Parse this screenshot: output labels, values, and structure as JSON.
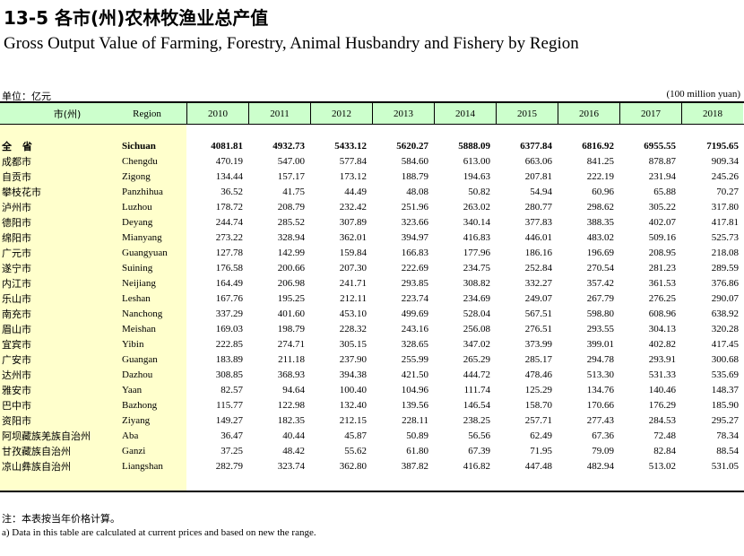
{
  "title_cn": "13-5  各市(州)农林牧渔业总产值",
  "title_en": "Gross Output Value of Farming, Forestry, Animal Husbandry and Fishery by Region",
  "unit_cn": "单位：亿元",
  "unit_en": "(100 million yuan)",
  "headers": {
    "region_cn": "市(州)",
    "region_en": "Region",
    "years": [
      "2010",
      "2011",
      "2012",
      "2013",
      "2014",
      "2015",
      "2016",
      "2017",
      "2018"
    ]
  },
  "rows": [
    {
      "cn": "全 省",
      "en": "Sichuan",
      "values": [
        "4081.81",
        "4932.73",
        "5433.12",
        "5620.27",
        "5888.09",
        "6377.84",
        "6816.92",
        "6955.55",
        "7195.65"
      ]
    },
    {
      "cn": "成都市",
      "en": "Chengdu",
      "values": [
        "470.19",
        "547.00",
        "577.84",
        "584.60",
        "613.00",
        "663.06",
        "841.25",
        "878.87",
        "909.34"
      ]
    },
    {
      "cn": "自贡市",
      "en": "Zigong",
      "values": [
        "134.44",
        "157.17",
        "173.12",
        "188.79",
        "194.63",
        "207.81",
        "222.19",
        "231.94",
        "245.26"
      ]
    },
    {
      "cn": "攀枝花市",
      "en": "Panzhihua",
      "values": [
        "36.52",
        "41.75",
        "44.49",
        "48.08",
        "50.82",
        "54.94",
        "60.96",
        "65.88",
        "70.27"
      ]
    },
    {
      "cn": "泸州市",
      "en": "Luzhou",
      "values": [
        "178.72",
        "208.79",
        "232.42",
        "251.96",
        "263.02",
        "280.77",
        "298.62",
        "305.22",
        "317.80"
      ]
    },
    {
      "cn": "德阳市",
      "en": "Deyang",
      "values": [
        "244.74",
        "285.52",
        "307.89",
        "323.66",
        "340.14",
        "377.83",
        "388.35",
        "402.07",
        "417.81"
      ]
    },
    {
      "cn": "绵阳市",
      "en": "Mianyang",
      "values": [
        "273.22",
        "328.94",
        "362.01",
        "394.97",
        "416.83",
        "446.01",
        "483.02",
        "509.16",
        "525.73"
      ]
    },
    {
      "cn": "广元市",
      "en": "Guangyuan",
      "values": [
        "127.78",
        "142.99",
        "159.84",
        "166.83",
        "177.96",
        "186.16",
        "196.69",
        "208.95",
        "218.08"
      ]
    },
    {
      "cn": "遂宁市",
      "en": "Suining",
      "values": [
        "176.58",
        "200.66",
        "207.30",
        "222.69",
        "234.75",
        "252.84",
        "270.54",
        "281.23",
        "289.59"
      ]
    },
    {
      "cn": "内江市",
      "en": "Neijiang",
      "values": [
        "164.49",
        "206.98",
        "241.71",
        "293.85",
        "308.82",
        "332.27",
        "357.42",
        "361.53",
        "376.86"
      ]
    },
    {
      "cn": "乐山市",
      "en": "Leshan",
      "values": [
        "167.76",
        "195.25",
        "212.11",
        "223.74",
        "234.69",
        "249.07",
        "267.79",
        "276.25",
        "290.07"
      ]
    },
    {
      "cn": "南充市",
      "en": "Nanchong",
      "values": [
        "337.29",
        "401.60",
        "453.10",
        "499.69",
        "528.04",
        "567.51",
        "598.80",
        "608.96",
        "638.92"
      ]
    },
    {
      "cn": "眉山市",
      "en": "Meishan",
      "values": [
        "169.03",
        "198.79",
        "228.32",
        "243.16",
        "256.08",
        "276.51",
        "293.55",
        "304.13",
        "320.28"
      ]
    },
    {
      "cn": "宜宾市",
      "en": "Yibin",
      "values": [
        "222.85",
        "274.71",
        "305.15",
        "328.65",
        "347.02",
        "373.99",
        "399.01",
        "402.82",
        "417.45"
      ]
    },
    {
      "cn": "广安市",
      "en": "Guangan",
      "values": [
        "183.89",
        "211.18",
        "237.90",
        "255.99",
        "265.29",
        "285.17",
        "294.78",
        "293.91",
        "300.68"
      ]
    },
    {
      "cn": "达州市",
      "en": "Dazhou",
      "values": [
        "308.85",
        "368.93",
        "394.38",
        "421.50",
        "444.72",
        "478.46",
        "513.30",
        "531.33",
        "535.69"
      ]
    },
    {
      "cn": "雅安市",
      "en": "Yaan",
      "values": [
        "82.57",
        "94.64",
        "100.40",
        "104.96",
        "111.74",
        "125.29",
        "134.76",
        "140.46",
        "148.37"
      ]
    },
    {
      "cn": "巴中市",
      "en": "Bazhong",
      "values": [
        "115.77",
        "122.98",
        "132.40",
        "139.56",
        "146.54",
        "158.70",
        "170.66",
        "176.29",
        "185.90"
      ]
    },
    {
      "cn": "资阳市",
      "en": "Ziyang",
      "values": [
        "149.27",
        "182.35",
        "212.15",
        "228.11",
        "238.25",
        "257.71",
        "277.43",
        "284.53",
        "295.27"
      ]
    },
    {
      "cn": "阿坝藏族羌族自治州",
      "en": "Aba",
      "values": [
        "36.47",
        "40.44",
        "45.87",
        "50.89",
        "56.56",
        "62.49",
        "67.36",
        "72.48",
        "78.34"
      ]
    },
    {
      "cn": "甘孜藏族自治州",
      "en": "Ganzi",
      "values": [
        "37.25",
        "48.42",
        "55.62",
        "61.80",
        "67.39",
        "71.95",
        "79.09",
        "82.84",
        "88.54"
      ]
    },
    {
      "cn": "凉山彝族自治州",
      "en": "Liangshan",
      "values": [
        "282.79",
        "323.74",
        "362.80",
        "387.82",
        "416.82",
        "447.48",
        "482.94",
        "513.02",
        "531.05"
      ]
    }
  ],
  "notes": {
    "cn": "注：本表按当年价格计算。",
    "en": "a) Data in this table are calculated at current prices and based on new the range."
  }
}
